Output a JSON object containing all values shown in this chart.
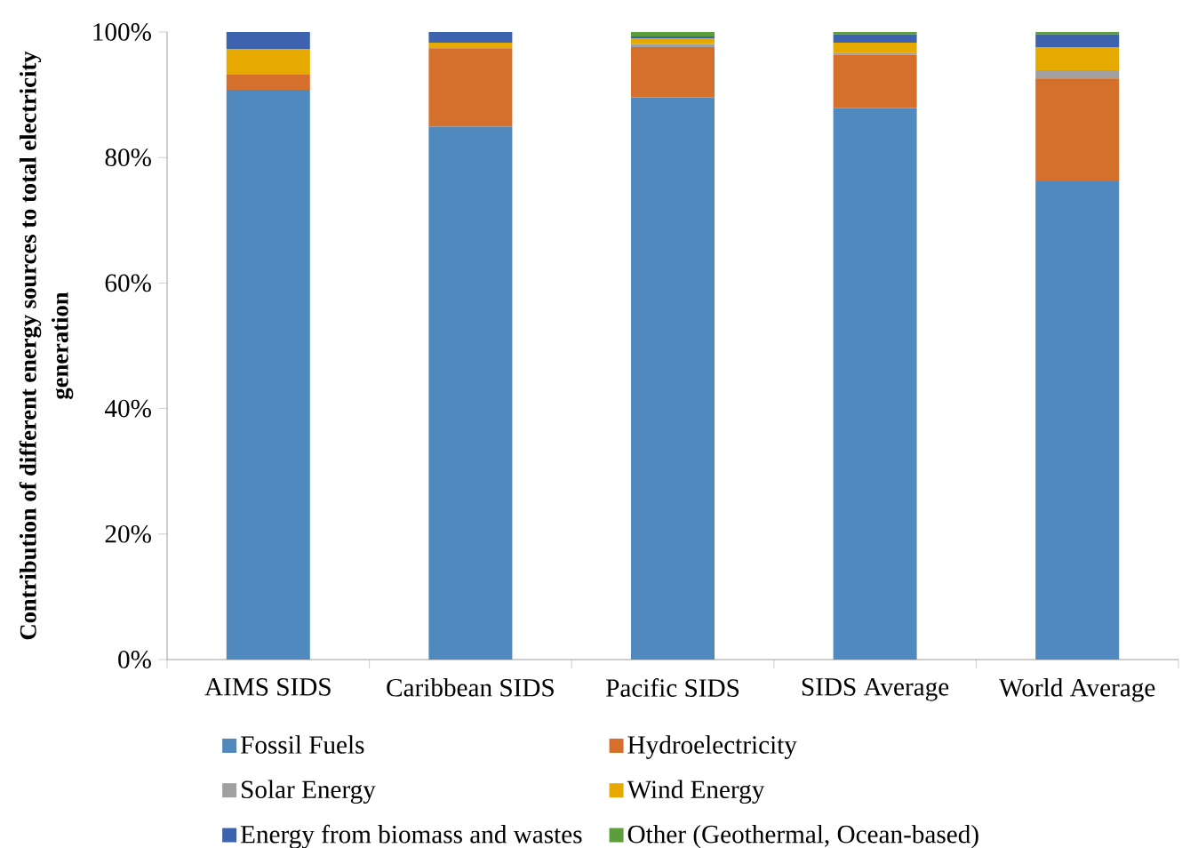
{
  "chart_data": {
    "type": "bar",
    "stacked": true,
    "ylabel": "Contribution of different energy sources to total electricity generation",
    "categories": [
      "AIMS SIDS",
      "Caribbean SIDS",
      "Pacific SIDS",
      "SIDS Average",
      "World Average"
    ],
    "series": [
      {
        "name": "Fossil Fuels",
        "color": "#4f89bd",
        "values": [
          90.8,
          84.9,
          89.6,
          87.9,
          76.2
        ]
      },
      {
        "name": "Hydroelectricity",
        "color": "#d4702b",
        "values": [
          2.4,
          12.5,
          8.0,
          8.5,
          16.4
        ]
      },
      {
        "name": "Solar Energy",
        "color": "#a0a0a0",
        "values": [
          0,
          0,
          0.5,
          0.3,
          1.3
        ]
      },
      {
        "name": "Wind Energy",
        "color": "#e5a900",
        "values": [
          4.1,
          0.9,
          0.9,
          1.6,
          3.7
        ]
      },
      {
        "name": "Energy from biomass and wastes",
        "color": "#3d63ae",
        "values": [
          2.7,
          1.7,
          0.3,
          1.3,
          2.0
        ]
      },
      {
        "name": "Other (Geothermal, Ocean-based)",
        "color": "#5c9e3c",
        "values": [
          0,
          0,
          0.7,
          0.4,
          0.4
        ]
      }
    ],
    "ylim": [
      0,
      100
    ],
    "yticks": [
      {
        "value": 0,
        "label": "0%"
      },
      {
        "value": 20,
        "label": "20%"
      },
      {
        "value": 40,
        "label": "40%"
      },
      {
        "value": 60,
        "label": "60%"
      },
      {
        "value": 80,
        "label": "80%"
      },
      {
        "value": 100,
        "label": "100%"
      }
    ],
    "grid": false,
    "legend": "bottom"
  }
}
